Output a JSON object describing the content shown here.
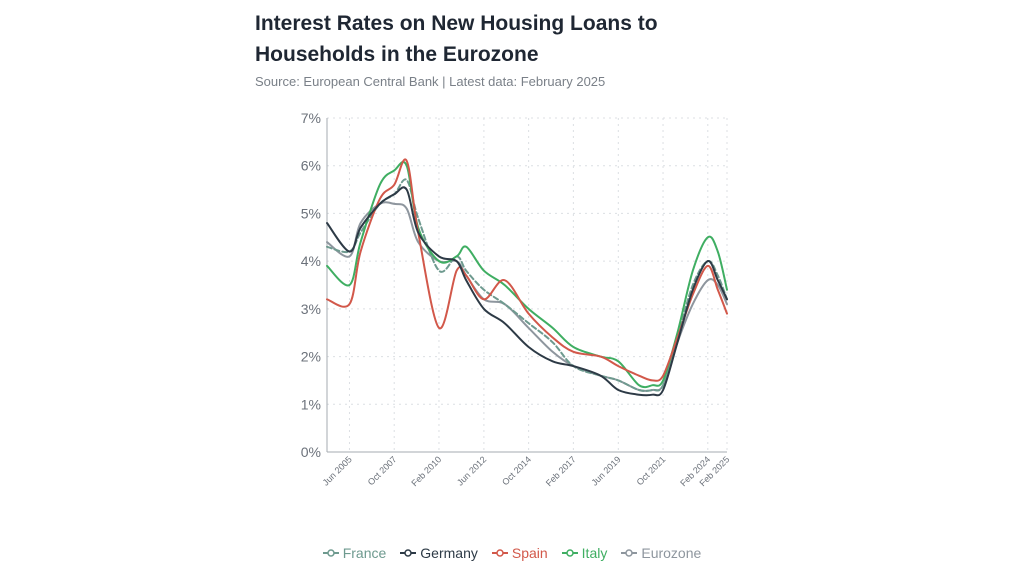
{
  "page": {
    "title": "Interest Rates on New Housing Loans to Households in the Eurozone",
    "subtitle": "Source: European Central Bank | Latest data: February 2025"
  },
  "chart_data": {
    "type": "line",
    "title": "Interest Rates on New Housing Loans to Households in the Eurozone",
    "subtitle": "Source: European Central Bank | Latest data: February 2025",
    "xlabel": "",
    "ylabel": "",
    "x_ticks": [
      "Jun 2005",
      "Oct 2007",
      "Feb 2010",
      "Jun 2012",
      "Oct 2014",
      "Feb 2017",
      "Jun 2019",
      "Oct 2021",
      "Feb 2024",
      "Feb 2025"
    ],
    "x_tick_pos": [
      2005.42,
      2007.75,
      2010.08,
      2012.42,
      2014.75,
      2017.08,
      2019.42,
      2021.75,
      2024.08,
      2025.08
    ],
    "x": [
      2004.25,
      2005.42,
      2006.0,
      2007.0,
      2007.75,
      2008.4,
      2009.0,
      2010.08,
      2011.0,
      2011.5,
      2012.42,
      2013.5,
      2014.75,
      2016.0,
      2017.08,
      2018.5,
      2019.42,
      2020.5,
      2021.2,
      2021.75,
      2022.5,
      2023.3,
      2024.08,
      2024.6,
      2025.08
    ],
    "y_ticks": [
      0,
      1,
      2,
      3,
      4,
      5,
      6,
      7
    ],
    "y_tick_labels": [
      "0%",
      "1%",
      "2%",
      "3%",
      "4%",
      "5%",
      "6%",
      "7%"
    ],
    "ylim": [
      0,
      7
    ],
    "xlim": [
      2004.25,
      2025.08
    ],
    "grid": true,
    "legend_position": "bottom",
    "series": [
      {
        "name": "France",
        "color": "#6e9a8f",
        "dashed": true,
        "values": [
          4.3,
          4.2,
          4.6,
          5.2,
          5.4,
          5.7,
          4.9,
          3.8,
          4.1,
          3.8,
          3.4,
          3.1,
          2.7,
          2.3,
          1.8,
          1.6,
          1.5,
          1.3,
          1.3,
          1.4,
          2.4,
          3.5,
          4.0,
          3.7,
          3.2
        ]
      },
      {
        "name": "Germany",
        "color": "#2d3a46",
        "dashed": false,
        "values": [
          4.8,
          4.2,
          4.7,
          5.2,
          5.4,
          5.5,
          4.6,
          4.1,
          4.0,
          3.6,
          3.0,
          2.7,
          2.2,
          1.9,
          1.8,
          1.6,
          1.3,
          1.2,
          1.2,
          1.3,
          2.3,
          3.4,
          4.0,
          3.6,
          3.2
        ]
      },
      {
        "name": "Spain",
        "color": "#d2584a",
        "dashed": false,
        "values": [
          3.2,
          3.1,
          4.2,
          5.3,
          5.6,
          6.1,
          4.6,
          2.6,
          3.8,
          3.7,
          3.2,
          3.6,
          2.9,
          2.4,
          2.1,
          2.0,
          1.8,
          1.6,
          1.5,
          1.6,
          2.4,
          3.3,
          3.9,
          3.4,
          2.9
        ]
      },
      {
        "name": "Italy",
        "color": "#3fae62",
        "dashed": false,
        "values": [
          3.9,
          3.5,
          4.4,
          5.6,
          5.9,
          6.0,
          4.7,
          4.0,
          4.1,
          4.3,
          3.8,
          3.5,
          3.0,
          2.6,
          2.2,
          2.0,
          1.9,
          1.4,
          1.4,
          1.5,
          2.5,
          3.8,
          4.5,
          4.2,
          3.4
        ]
      },
      {
        "name": "Eurozone",
        "color": "#8e969e",
        "dashed": false,
        "values": [
          4.4,
          4.1,
          4.8,
          5.2,
          5.2,
          5.1,
          4.4,
          4.0,
          4.0,
          3.7,
          3.2,
          3.1,
          2.6,
          2.1,
          1.8,
          1.6,
          1.5,
          1.3,
          1.3,
          1.4,
          2.3,
          3.1,
          3.6,
          3.5,
          3.1
        ]
      }
    ]
  },
  "legend": {
    "items": [
      "France",
      "Germany",
      "Spain",
      "Italy",
      "Eurozone"
    ]
  }
}
